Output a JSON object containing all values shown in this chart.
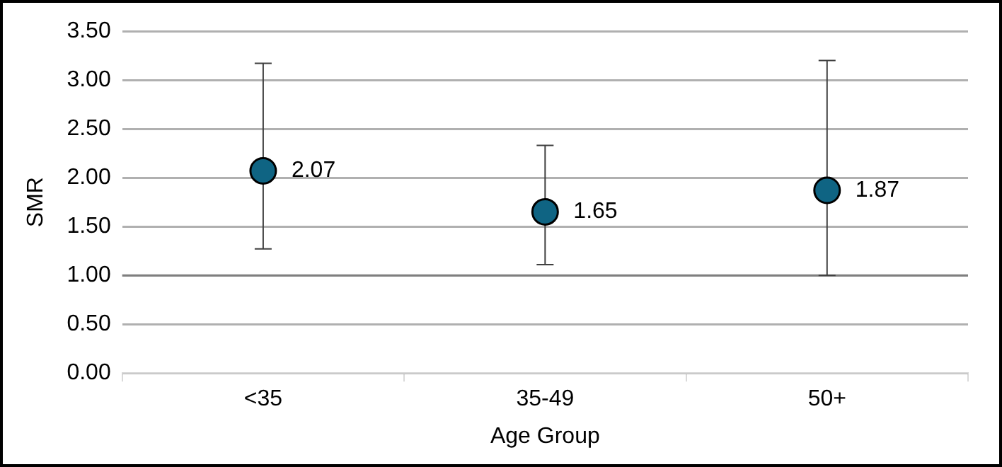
{
  "chart_data": {
    "type": "scatter",
    "xlabel": "Age Group",
    "ylabel": "SMR",
    "categories": [
      "<35",
      "35-49",
      "50+"
    ],
    "series": [
      {
        "color": "#0f6483",
        "values": [
          2.07,
          1.65,
          1.87
        ],
        "errors": [
          [
            1.27,
            3.17
          ],
          [
            1.11,
            2.33
          ],
          [
            1.0,
            3.2
          ]
        ]
      }
    ],
    "ylim": [
      0,
      3.5
    ],
    "yticks": [
      {
        "value": 0,
        "label": "0.00"
      },
      {
        "value": 0.5,
        "label": "0.50"
      },
      {
        "value": 1,
        "label": "1.00"
      },
      {
        "value": 1.5,
        "label": "1.50"
      },
      {
        "value": 2,
        "label": "2.00"
      },
      {
        "value": 2.5,
        "label": "2.50"
      },
      {
        "value": 3,
        "label": "3.00"
      },
      {
        "value": 3.5,
        "label": "3.50"
      }
    ],
    "ref_lines": [
      {
        "axis": "y",
        "value": 1,
        "color": "#7f7f7f"
      }
    ],
    "grid": "y",
    "legend": false,
    "marker": "circle",
    "data_labels": true
  }
}
